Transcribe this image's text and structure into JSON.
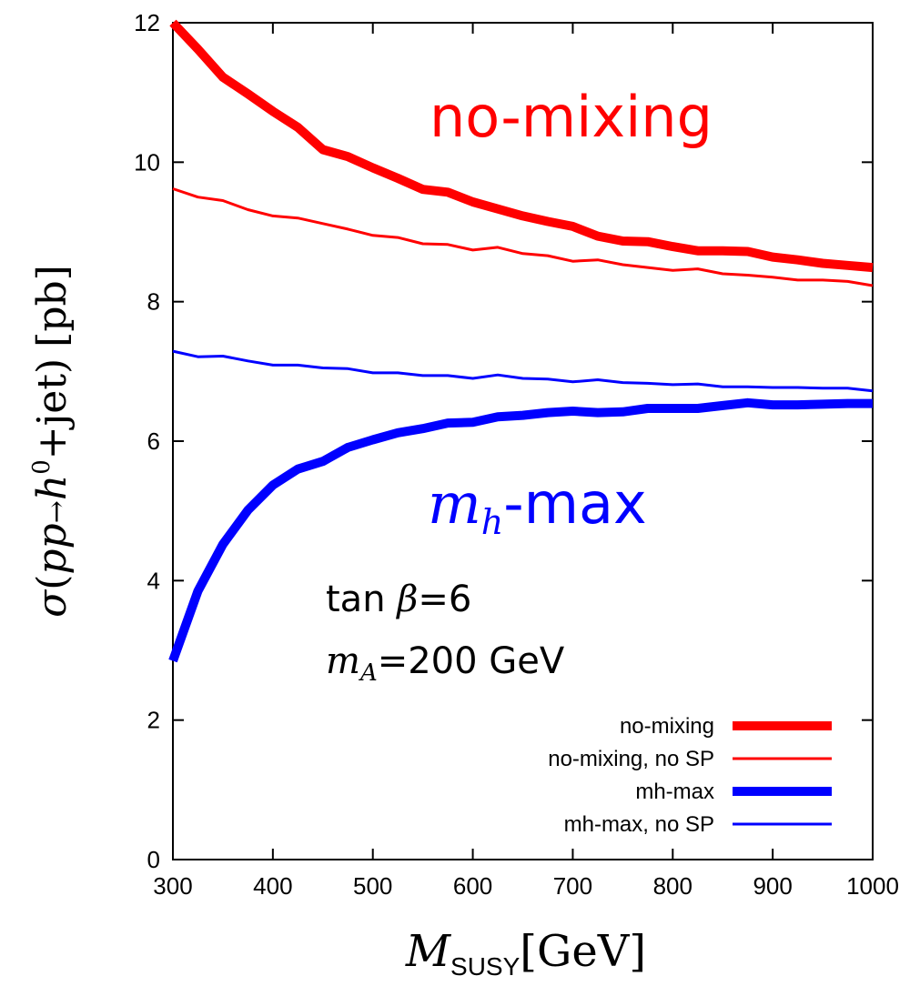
{
  "chart_data": {
    "type": "line",
    "xlabel": "M",
    "xlabel_sub": "SUSY",
    "xlabel_unit": "[GeV]",
    "ylabel_parts": {
      "sigma": "σ",
      "open": "(",
      "pp": "pp",
      "arrow": "→",
      "h": "h",
      "h_sup": "0",
      "rest": "+jet)",
      "unit": "[pb]"
    },
    "xlim": [
      300,
      1000
    ],
    "ylim": [
      0,
      12
    ],
    "xticks": [
      "300",
      "400",
      "500",
      "600",
      "700",
      "800",
      "900",
      "1000"
    ],
    "yticks": [
      "0",
      "2",
      "4",
      "6",
      "8",
      "10",
      "12"
    ],
    "grid": false,
    "legend_position": "bottom-right",
    "annotations": {
      "no_mixing": "no-mixing",
      "mh_m": "m",
      "mh_sub": "h",
      "mh_rest": "-max",
      "tanb_a": "tan ",
      "tanb_b": "β",
      "tanb_c": "=6",
      "ma_m": "m",
      "ma_sub": "A",
      "ma_rest": "=200 GeV"
    },
    "x": [
      300,
      325,
      350,
      375,
      400,
      425,
      450,
      475,
      500,
      525,
      550,
      575,
      600,
      625,
      650,
      675,
      700,
      725,
      750,
      775,
      800,
      825,
      850,
      875,
      900,
      925,
      950,
      975,
      1000
    ],
    "series": [
      {
        "name": "no-mixing",
        "color": "#ff0000",
        "thick": true,
        "values": [
          12.0,
          11.62,
          11.22,
          10.98,
          10.73,
          10.5,
          10.18,
          10.08,
          9.92,
          9.77,
          9.61,
          9.57,
          9.43,
          9.33,
          9.23,
          9.15,
          9.08,
          8.94,
          8.87,
          8.86,
          8.79,
          8.73,
          8.73,
          8.72,
          8.64,
          8.6,
          8.55,
          8.52,
          8.49
        ]
      },
      {
        "name": "no-mixing, no SP",
        "color": "#ff0000",
        "thick": false,
        "values": [
          9.62,
          9.5,
          9.45,
          9.32,
          9.23,
          9.2,
          9.12,
          9.04,
          8.95,
          8.92,
          8.83,
          8.82,
          8.74,
          8.78,
          8.69,
          8.66,
          8.58,
          8.6,
          8.53,
          8.49,
          8.45,
          8.47,
          8.4,
          8.38,
          8.35,
          8.31,
          8.31,
          8.29,
          8.23
        ]
      },
      {
        "name": "mh-max",
        "color": "#0000ff",
        "thick": true,
        "values": [
          2.85,
          3.85,
          4.52,
          5.01,
          5.37,
          5.6,
          5.71,
          5.91,
          6.02,
          6.12,
          6.18,
          6.26,
          6.27,
          6.35,
          6.37,
          6.41,
          6.43,
          6.41,
          6.42,
          6.47,
          6.47,
          6.47,
          6.51,
          6.55,
          6.52,
          6.52,
          6.53,
          6.54,
          6.54
        ]
      },
      {
        "name": "mh-max, no SP",
        "color": "#0000ff",
        "thick": false,
        "values": [
          7.29,
          7.21,
          7.22,
          7.15,
          7.09,
          7.09,
          7.05,
          7.04,
          6.98,
          6.98,
          6.94,
          6.94,
          6.9,
          6.95,
          6.9,
          6.89,
          6.85,
          6.88,
          6.84,
          6.83,
          6.81,
          6.82,
          6.78,
          6.78,
          6.77,
          6.77,
          6.76,
          6.76,
          6.72
        ]
      }
    ]
  }
}
